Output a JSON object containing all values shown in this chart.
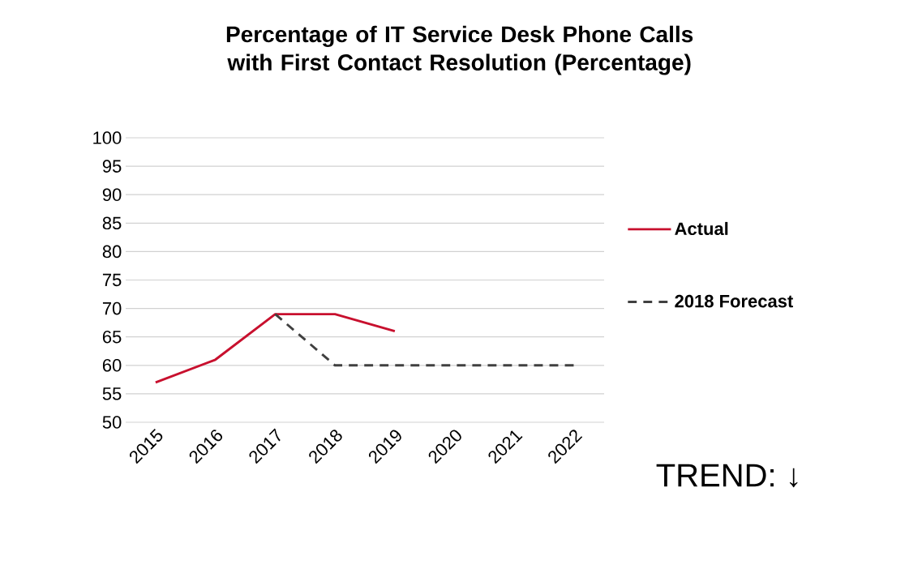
{
  "chart_data": {
    "type": "line",
    "title": "Percentage of IT Service Desk Phone Calls with First Contact Resolution (Percentage)",
    "categories": [
      "2015",
      "2016",
      "2017",
      "2018",
      "2019",
      "2020",
      "2021",
      "2022"
    ],
    "series": [
      {
        "name": "Actual",
        "color": "#c8102e",
        "values": [
          57,
          61,
          69,
          69,
          66,
          null,
          null,
          null
        ]
      },
      {
        "name": "2018 Forecast",
        "color": "#404040",
        "line_style": "dashed",
        "values": [
          null,
          null,
          69,
          60,
          60,
          60,
          60,
          60
        ]
      }
    ],
    "ylim": [
      50,
      100
    ],
    "yticks": [
      50,
      55,
      60,
      65,
      70,
      75,
      80,
      85,
      90,
      95,
      100
    ],
    "grid": "y",
    "legend": "right",
    "annotations": [
      "TREND: ↓"
    ]
  }
}
